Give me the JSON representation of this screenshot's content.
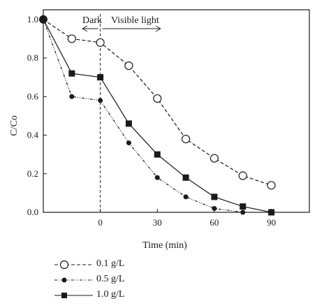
{
  "chart_data": {
    "type": "line",
    "xlabel": "Time (min)",
    "ylabel": "C/Co",
    "xlim": [
      -30,
      110
    ],
    "ylim": [
      0,
      1.05
    ],
    "xticks": [
      0,
      30,
      60,
      90
    ],
    "yticks": [
      0.0,
      0.2,
      0.4,
      0.6,
      0.8,
      1.0
    ],
    "xtick_labels": [
      "0",
      "30",
      "60",
      "90"
    ],
    "ytick_labels": [
      "0.0",
      "0.2",
      "0.4",
      "0.6",
      "0.8",
      "1.0"
    ],
    "grid": false,
    "legend_position": "below-left",
    "annotations": {
      "dark": "Dark",
      "visible": "Visible light",
      "divider_x": 0
    },
    "series": [
      {
        "name": "0.1 g/L",
        "marker": "open-circle",
        "line": "dashed",
        "x": [
          -30,
          -15,
          0,
          15,
          30,
          45,
          60,
          75,
          90
        ],
        "y": [
          1.0,
          0.9,
          0.88,
          0.76,
          0.59,
          0.38,
          0.28,
          0.19,
          0.14
        ]
      },
      {
        "name": "0.5 g/L",
        "marker": "filled-circle",
        "line": "dash-dot-dot",
        "x": [
          -30,
          -15,
          0,
          15,
          30,
          45,
          60,
          75
        ],
        "y": [
          1.0,
          0.6,
          0.58,
          0.36,
          0.18,
          0.08,
          0.02,
          0.0
        ]
      },
      {
        "name": "1.0 g/L",
        "marker": "filled-square",
        "line": "solid",
        "x": [
          -30,
          -15,
          0,
          15,
          30,
          45,
          60,
          75,
          90
        ],
        "y": [
          1.0,
          0.72,
          0.7,
          0.46,
          0.3,
          0.18,
          0.08,
          0.03,
          0.0
        ]
      }
    ]
  }
}
